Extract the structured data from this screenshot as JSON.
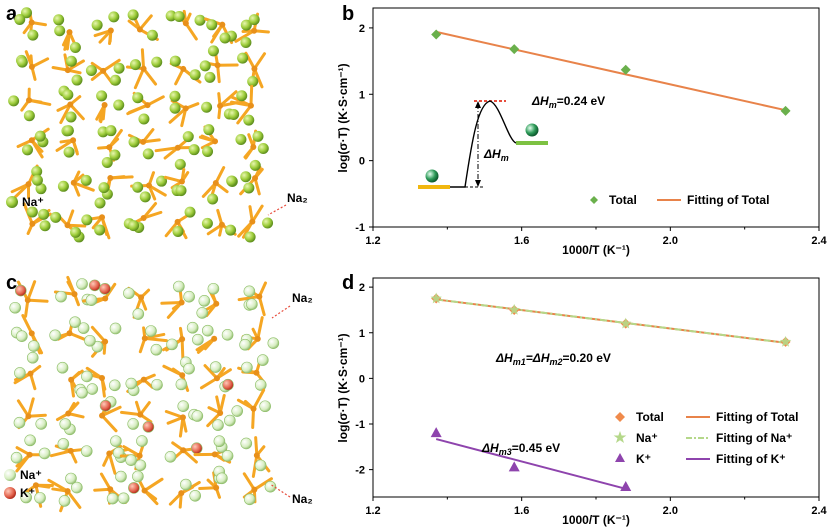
{
  "colors": {
    "orange": "#f08a4b",
    "fit_orange": "#e8834a",
    "green": "#6ab04c",
    "light_green": "#b5d88a",
    "purple": "#8e44ad",
    "framework": "#f5a623",
    "na_ball": "#9fce3c",
    "k_ball": "#e74c3c",
    "barrier_red": "#e74c3c",
    "bar_yellow": "#f1b70f",
    "bar_green": "#7dc242"
  },
  "panel_a": {
    "letter": "a",
    "legend_na": "Na⁺",
    "label_na2": "Na₂"
  },
  "panel_c": {
    "letter": "c",
    "legend_na": "Na⁺",
    "legend_k": "K⁺",
    "label_na2_top": "Na₂",
    "label_na2_bottom": "Na₂"
  },
  "chart_data": [
    {
      "panel": "b",
      "type": "scatter",
      "xlabel": "1000/T (K⁻¹)",
      "ylabel": "log(σ·T) (K·S·cm⁻¹)",
      "xlim": [
        1.2,
        2.4
      ],
      "ylim": [
        -1,
        2.3
      ],
      "xticks": [
        "1.2",
        "1.6",
        "2.0",
        "2.4"
      ],
      "yticks": [
        "-1",
        "0",
        "1",
        "2"
      ],
      "series": [
        {
          "name": "Total",
          "marker": "diamond",
          "color": "#6ab04c",
          "x": [
            1.37,
            1.58,
            1.88,
            2.31
          ],
          "y": [
            1.9,
            1.68,
            1.37,
            0.75
          ]
        },
        {
          "name": "Fitting of Total",
          "kind": "line",
          "color": "#e8834a",
          "x": [
            1.37,
            2.31
          ],
          "y": [
            1.94,
            0.76
          ]
        }
      ],
      "annotations": {
        "dHm": "=0.24 eV",
        "dHm_symbol": "ΔH",
        "dHm_sub": "m",
        "inset_symbol": "ΔH",
        "inset_sub": "m"
      },
      "legend": [
        "Total",
        "Fitting of Total"
      ]
    },
    {
      "panel": "d",
      "type": "scatter",
      "xlabel": "1000/T (K⁻¹)",
      "ylabel": "log(σ·T) (K·S·cm⁻¹)",
      "xlim": [
        1.2,
        2.4
      ],
      "ylim": [
        -2.6,
        2.2
      ],
      "xticks": [
        "1.2",
        "1.6",
        "2.0",
        "2.4"
      ],
      "yticks": [
        "-2",
        "-1",
        "0",
        "1",
        "2"
      ],
      "series": [
        {
          "name": "Total",
          "marker": "diamond",
          "color": "#f08a4b",
          "x": [
            1.37,
            1.58,
            1.88,
            2.31
          ],
          "y": [
            1.75,
            1.5,
            1.2,
            0.8
          ]
        },
        {
          "name": "Na⁺",
          "marker": "star",
          "color": "#b5d88a",
          "x": [
            1.37,
            1.58,
            1.88,
            2.31
          ],
          "y": [
            1.75,
            1.5,
            1.2,
            0.8
          ]
        },
        {
          "name": "K⁺",
          "marker": "triangle",
          "color": "#8e44ad",
          "x": [
            1.37,
            1.58,
            1.88
          ],
          "y": [
            -1.2,
            -1.95,
            -2.38
          ]
        },
        {
          "name": "Fitting of Total",
          "kind": "line",
          "color": "#e8834a",
          "x": [
            1.37,
            2.31
          ],
          "y": [
            1.73,
            0.78
          ]
        },
        {
          "name": "Fitting of Na⁺",
          "kind": "dashline",
          "color": "#b5d88a",
          "x": [
            1.37,
            2.31
          ],
          "y": [
            1.73,
            0.78
          ]
        },
        {
          "name": "Fitting of K⁺",
          "kind": "line",
          "color": "#8e44ad",
          "x": [
            1.37,
            1.88
          ],
          "y": [
            -1.33,
            -2.42
          ]
        }
      ],
      "annotations": {
        "dHm12": "ΔH",
        "dHm12_sub1": "m1",
        "dHm12_mid": "=ΔH",
        "dHm12_sub2": "m2",
        "dHm12_val": "=0.20 eV",
        "dHm3": "ΔH",
        "dHm3_sub": "m3",
        "dHm3_val": "=0.45 eV"
      },
      "legend": [
        "Total",
        "Fitting of Total",
        "Na⁺",
        "Fitting of Na⁺",
        "K⁺",
        "Fitting of K⁺"
      ]
    }
  ]
}
